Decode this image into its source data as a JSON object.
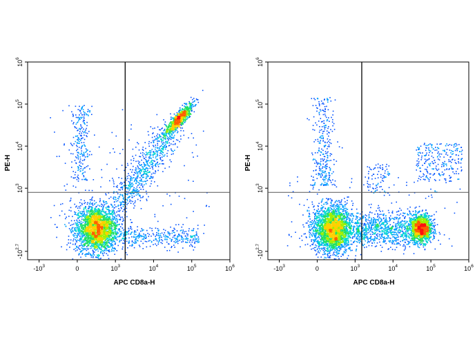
{
  "colors": {
    "density": [
      "#1a1aff",
      "#0050ff",
      "#00a0ff",
      "#00d8d0",
      "#20e060",
      "#a0f000",
      "#ffd000",
      "#ff6000",
      "#ff1010"
    ],
    "gate": "#000000",
    "frame": "#000000"
  },
  "chart_data": [
    {
      "type": "scatter",
      "subtype": "flow-cytometry-density-dot-plot",
      "xlabel": "APC CD8a-H",
      "ylabel": "PE-H",
      "x_scale": "biexponential",
      "y_scale": "biexponential",
      "x_ticks": [
        {
          "value": -1000,
          "base": "-10",
          "exp": "3"
        },
        {
          "value": 0,
          "base": "0",
          "exp": ""
        },
        {
          "value": 1000,
          "base": "10",
          "exp": "3"
        },
        {
          "value": 10000,
          "base": "10",
          "exp": "4"
        },
        {
          "value": 100000,
          "base": "10",
          "exp": "5"
        },
        {
          "value": 1000000,
          "base": "10",
          "exp": "6"
        }
      ],
      "y_ticks": [
        {
          "value": -501,
          "base": "-10",
          "exp": "2.7"
        },
        {
          "value": 1000,
          "base": "10",
          "exp": "3"
        },
        {
          "value": 10000,
          "base": "10",
          "exp": "4"
        },
        {
          "value": 100000,
          "base": "10",
          "exp": "5"
        },
        {
          "value": 1000000,
          "base": "10",
          "exp": "6"
        }
      ],
      "xlim": [
        -2000,
        1000000
      ],
      "ylim": [
        -700,
        1000000
      ],
      "quadrant_gate": {
        "x": 1800,
        "y": 900
      },
      "populations": [
        {
          "label": "CD8a- PE-",
          "x_center": 500,
          "y_center": 50,
          "relative_density": "high"
        },
        {
          "label": "CD8a+ PE+",
          "x_center": 45000,
          "y_center": 45000,
          "relative_density": "medium"
        },
        {
          "label": "diagonal transition",
          "x_range": [
            1000,
            30000
          ],
          "relative_density": "low"
        }
      ]
    },
    {
      "type": "scatter",
      "subtype": "flow-cytometry-density-dot-plot",
      "xlabel": "APC CD8a-H",
      "ylabel": "PE-H",
      "x_scale": "biexponential",
      "y_scale": "biexponential",
      "x_ticks": [
        {
          "value": -1000,
          "base": "-10",
          "exp": "3"
        },
        {
          "value": 0,
          "base": "0",
          "exp": ""
        },
        {
          "value": 1000,
          "base": "10",
          "exp": "3"
        },
        {
          "value": 10000,
          "base": "10",
          "exp": "4"
        },
        {
          "value": 100000,
          "base": "10",
          "exp": "5"
        },
        {
          "value": 1000000,
          "base": "10",
          "exp": "6"
        }
      ],
      "y_ticks": [
        {
          "value": -501,
          "base": "-10",
          "exp": "2.7"
        },
        {
          "value": 1000,
          "base": "10",
          "exp": "3"
        },
        {
          "value": 10000,
          "base": "10",
          "exp": "4"
        },
        {
          "value": 100000,
          "base": "10",
          "exp": "5"
        },
        {
          "value": 1000000,
          "base": "10",
          "exp": "6"
        }
      ],
      "xlim": [
        -2000,
        1000000
      ],
      "ylim": [
        -700,
        1000000
      ],
      "quadrant_gate": {
        "x": 1500,
        "y": 900
      },
      "populations": [
        {
          "label": "CD8a- PE-",
          "x_center": 400,
          "y_center": 50,
          "relative_density": "high"
        },
        {
          "label": "CD8a+ PE-",
          "x_center": 55000,
          "y_center": 60,
          "relative_density": "high"
        },
        {
          "label": "CD8a+ PE+ scatter",
          "x_range": [
            40000,
            700000
          ],
          "y_range": [
            1500,
            12000
          ],
          "relative_density": "low"
        }
      ]
    }
  ]
}
